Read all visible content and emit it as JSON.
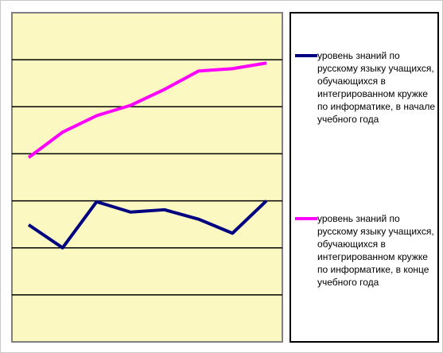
{
  "chart_data": {
    "type": "line",
    "categories": [
      null,
      null,
      null,
      null,
      null,
      null,
      null,
      null
    ],
    "series": [
      {
        "name": "уровень знаний  по русскому языку учащихся, обучающихся в интегрированном кружке по информатике, в начале учебного года",
        "color": "#000080",
        "values": [
          2.49,
          2.0,
          2.98,
          2.76,
          2.81,
          2.61,
          2.31,
          3.0
        ]
      },
      {
        "name": "уровень знаний  по русскому языку учащихся, обучающихся в интегрированном кружке по информатике, в конце учебного года",
        "color": "#ff00ff",
        "values": [
          3.92,
          4.46,
          4.81,
          5.03,
          5.37,
          5.76,
          5.81,
          5.93
        ]
      }
    ],
    "ylim": [
      0,
      7
    ],
    "yticks": [
      1,
      2,
      3,
      4,
      5,
      6
    ],
    "grid": true,
    "legend": "right"
  }
}
